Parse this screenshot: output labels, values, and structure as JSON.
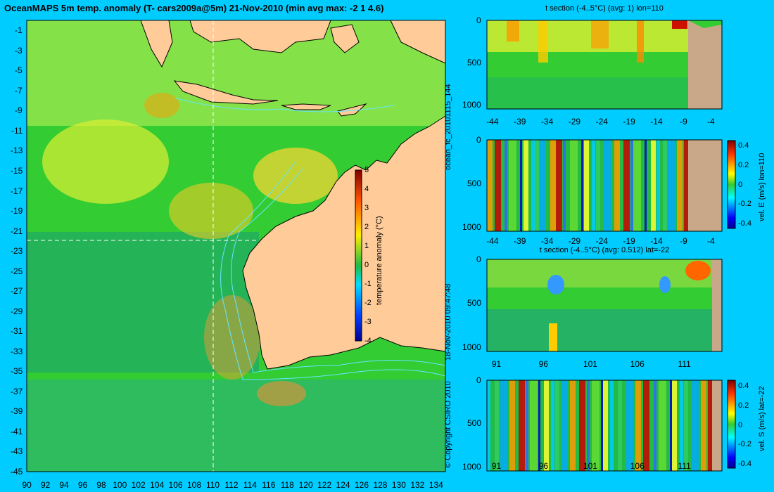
{
  "title": "OceanMAPS 5m temp. anomaly (T- cars2009a@5m) 21-Nov-2010 (min avg max: -2 1 4.6)",
  "side_texts": {
    "run_id": "ocean_fc_20101115_144",
    "generated": "18-Nov-2010 09:47:48",
    "copyright": "© Copyright CSIRO 2010"
  },
  "colors": {
    "background": "#00ccff",
    "land": "#ffcc99",
    "land_section": "#c8a888",
    "contour": "#66e6ff"
  },
  "map": {
    "x_ticks": [
      "90",
      "92",
      "94",
      "96",
      "98",
      "100",
      "102",
      "104",
      "106",
      "108",
      "110",
      "112",
      "114",
      "116",
      "118",
      "120",
      "122",
      "124",
      "126",
      "128",
      "130",
      "132",
      "134"
    ],
    "y_ticks": [
      "-1",
      "-3",
      "-5",
      "-7",
      "-9",
      "-11",
      "-13",
      "-15",
      "-17",
      "-19",
      "-21",
      "-23",
      "-25",
      "-27",
      "-29",
      "-31",
      "-33",
      "-35",
      "-37",
      "-39",
      "-41",
      "-43",
      "-45"
    ],
    "section_lon": 110,
    "section_lat": -22,
    "colorbar": {
      "label": "temperature anomaly (°C)",
      "ticks": [
        "5",
        "4",
        "3",
        "2",
        "1",
        "0",
        "-1",
        "-2",
        "-3",
        "-4"
      ]
    }
  },
  "chart_data": [
    {
      "type": "heatmap",
      "title": "OceanMAPS 5m temp. anomaly (T- cars2009a@5m) 21-Nov-2010 (min avg max: -2 1 4.6)",
      "x_ticks": [
        "90",
        "92",
        "94",
        "96",
        "98",
        "100",
        "102",
        "104",
        "106",
        "108",
        "110",
        "112",
        "114",
        "116",
        "118",
        "120",
        "122",
        "124",
        "126",
        "128",
        "130",
        "132",
        "134"
      ],
      "y_ticks": [
        "-1",
        "-3",
        "-5",
        "-7",
        "-9",
        "-11",
        "-13",
        "-15",
        "-17",
        "-19",
        "-21",
        "-23",
        "-25",
        "-27",
        "-29",
        "-31",
        "-33",
        "-35",
        "-37",
        "-39",
        "-41",
        "-43",
        "-45"
      ],
      "xlim": [
        90,
        135
      ],
      "ylim": [
        -45,
        0
      ],
      "colorbar": {
        "label": "temperature anomaly (°C)",
        "range": [
          -4,
          5
        ]
      },
      "stats": {
        "min": -2,
        "avg": 1,
        "max": 4.6
      }
    },
    {
      "type": "heatmap",
      "title": "t section (-4..5°C) (avg: 1) lon=110",
      "x_ticks": [
        "-44",
        "-39",
        "-34",
        "-29",
        "-24",
        "-19",
        "-14",
        "-9",
        "-4"
      ],
      "y_ticks": [
        "0",
        "500",
        "1000"
      ],
      "xlim": [
        -45,
        -2
      ],
      "ylim": [
        1050,
        0
      ]
    },
    {
      "type": "heatmap",
      "title": "",
      "x_ticks": [
        "-44",
        "-39",
        "-34",
        "-29",
        "-24",
        "-19",
        "-14",
        "-9",
        "-4"
      ],
      "y_ticks": [
        "0",
        "500",
        "1000"
      ],
      "xlim": [
        -45,
        -2
      ],
      "ylim": [
        1050,
        0
      ],
      "colorbar": {
        "label": "vel. E (m/s) lon=110",
        "ticks": [
          "0.4",
          "0.2",
          "0",
          "-0.2",
          "-0.4"
        ]
      }
    },
    {
      "type": "heatmap",
      "title": "t section (-4..5°C) (avg: 0.512) lat=-22",
      "x_ticks": [
        "91",
        "96",
        "101",
        "106",
        "111"
      ],
      "y_ticks": [
        "0",
        "500",
        "1000"
      ],
      "xlim": [
        90,
        115
      ],
      "ylim": [
        1050,
        0
      ]
    },
    {
      "type": "heatmap",
      "title": "",
      "x_ticks": [
        "91",
        "96",
        "101",
        "106",
        "111"
      ],
      "y_ticks": [
        "0",
        "500",
        "1000"
      ],
      "xlim": [
        90,
        115
      ],
      "ylim": [
        1050,
        0
      ],
      "colorbar": {
        "label": "vel. S (m/s) lat=-22",
        "ticks": [
          "0.4",
          "0.2",
          "0",
          "-0.2",
          "-0.4"
        ]
      }
    }
  ]
}
